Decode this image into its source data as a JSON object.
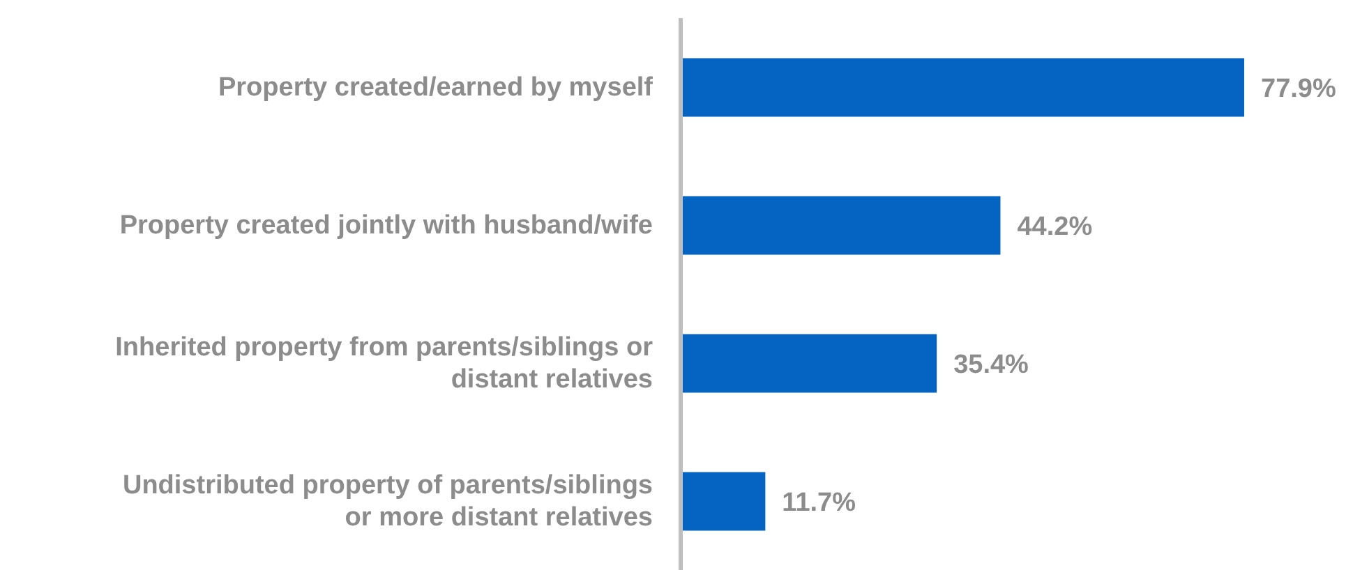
{
  "chart_data": {
    "type": "bar",
    "orientation": "horizontal",
    "categories": [
      "Property created/earned by myself",
      "Property created jointly with husband/wife",
      "Inherited property from parents/siblings or distant relatives",
      "Undistributed property of parents/siblings or more distant relatives"
    ],
    "values": [
      77.9,
      44.2,
      35.4,
      11.7
    ],
    "value_labels": [
      "77.9%",
      "44.2%",
      "35.4%",
      "11.7%"
    ],
    "color": "#0563c1"
  }
}
